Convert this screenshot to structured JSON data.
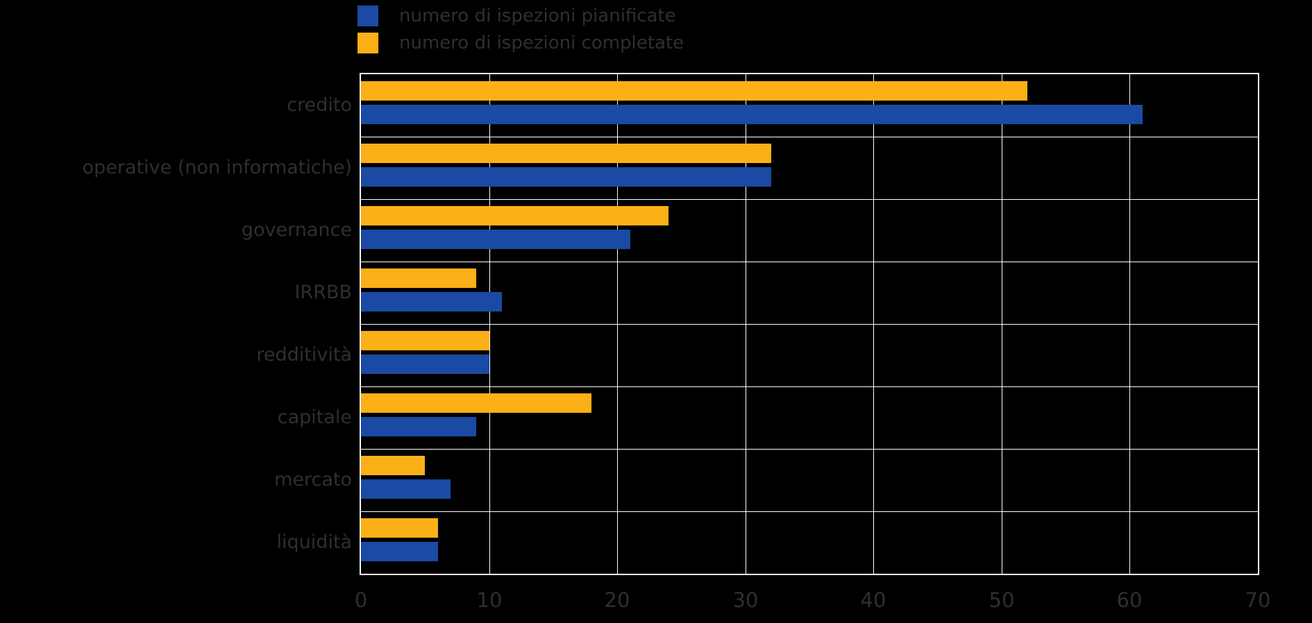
{
  "page": {
    "background_color": "#000000",
    "text_color": "#2f2f2f",
    "grid_color": "#ffffff"
  },
  "legend": {
    "position": "top",
    "items": [
      {
        "id": "planned",
        "label": "numero di ispezioni pianificate",
        "color": "#1A4AA3"
      },
      {
        "id": "completed",
        "label": "numero di ispezioni completate",
        "color": "#FBB018"
      }
    ]
  },
  "chart_data": {
    "type": "bar",
    "orientation": "horizontal",
    "title": "",
    "xlabel": "",
    "ylabel": "",
    "categories": [
      "credito",
      "operative (non informatiche)",
      "governance",
      "IRRBB",
      "redditività",
      "capitale",
      "mercato",
      "liquidità"
    ],
    "series": [
      {
        "name": "numero di ispezioni pianificate",
        "color": "#1A4AA3",
        "values": [
          61,
          32,
          21,
          11,
          10,
          9,
          7,
          6
        ]
      },
      {
        "name": "numero di ispezioni completate",
        "color": "#FBB018",
        "values": [
          52,
          32,
          24,
          9,
          10,
          18,
          5,
          6
        ]
      }
    ],
    "xlim": [
      0,
      70
    ],
    "xticks": [
      0,
      10,
      20,
      30,
      40,
      50,
      60,
      70
    ],
    "grid": true,
    "legend_position": "top"
  }
}
